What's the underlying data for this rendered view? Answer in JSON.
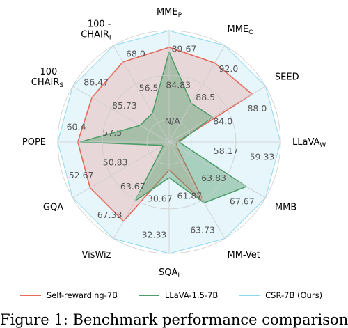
{
  "chart_data": {
    "type": "radar",
    "axes": [
      {
        "label": "MME",
        "sub": "P"
      },
      {
        "label": "MME",
        "sub": "C"
      },
      {
        "label": "SEED",
        "sub": ""
      },
      {
        "label": "LLaVA",
        "sub": "W"
      },
      {
        "label": "MMB",
        "sub": ""
      },
      {
        "label": "MM-Vet",
        "sub": ""
      },
      {
        "label": "SQA",
        "sub": "I"
      },
      {
        "label": "VisWiz",
        "sub": ""
      },
      {
        "label": "GQA",
        "sub": ""
      },
      {
        "label": "POPE",
        "sub": ""
      },
      {
        "label": "100 -\nCHAIR",
        "sub": "S"
      },
      {
        "label": "100 -\nCHAIR",
        "sub": "I"
      }
    ],
    "tick_labels": [
      [
        "N/A",
        "84.83",
        "89.67"
      ],
      [
        "88.5",
        "92.0"
      ],
      [
        "84.0",
        "88.0"
      ],
      [
        "58.17",
        "59.33"
      ],
      [
        "63.83",
        "67.67"
      ],
      [
        "61.87",
        "63.73"
      ],
      [
        "30.67",
        "32.33"
      ],
      [
        "63.67",
        "67.33"
      ],
      [
        "50.83",
        "52.67"
      ],
      [
        "57.5",
        "60.4"
      ],
      [
        "85.73",
        "86.47"
      ],
      [
        "56.5",
        "68.0"
      ]
    ],
    "series": [
      {
        "name": "Self-rewarding-7B",
        "color": "#e8685a",
        "fill": "#e8685a",
        "values": [
          0.85,
          0.82,
          0.86,
          0.07,
          0.08,
          0.63,
          0.25,
          0.82,
          0.82,
          0.82,
          0.8,
          0.83
        ]
      },
      {
        "name": "LLaVA-1.5-7B",
        "color": "#4e9e6a",
        "fill": "#4e9e6a",
        "values": [
          0.81,
          0.4,
          0.45,
          0.09,
          0.8,
          0.63,
          0.32,
          0.61,
          0.06,
          0.8,
          0.3,
          0.3
        ]
      },
      {
        "name": "CSR-7B (Ours)",
        "color": "#8ed8ee",
        "fill": "#bfe8f5",
        "values": [
          1.0,
          1.0,
          1.0,
          1.0,
          1.0,
          1.0,
          1.0,
          1.0,
          1.0,
          1.0,
          1.0,
          1.0
        ]
      }
    ],
    "grid": true,
    "legend_position": "bottom"
  },
  "caption": "Figure 1: Benchmark performance comparison"
}
